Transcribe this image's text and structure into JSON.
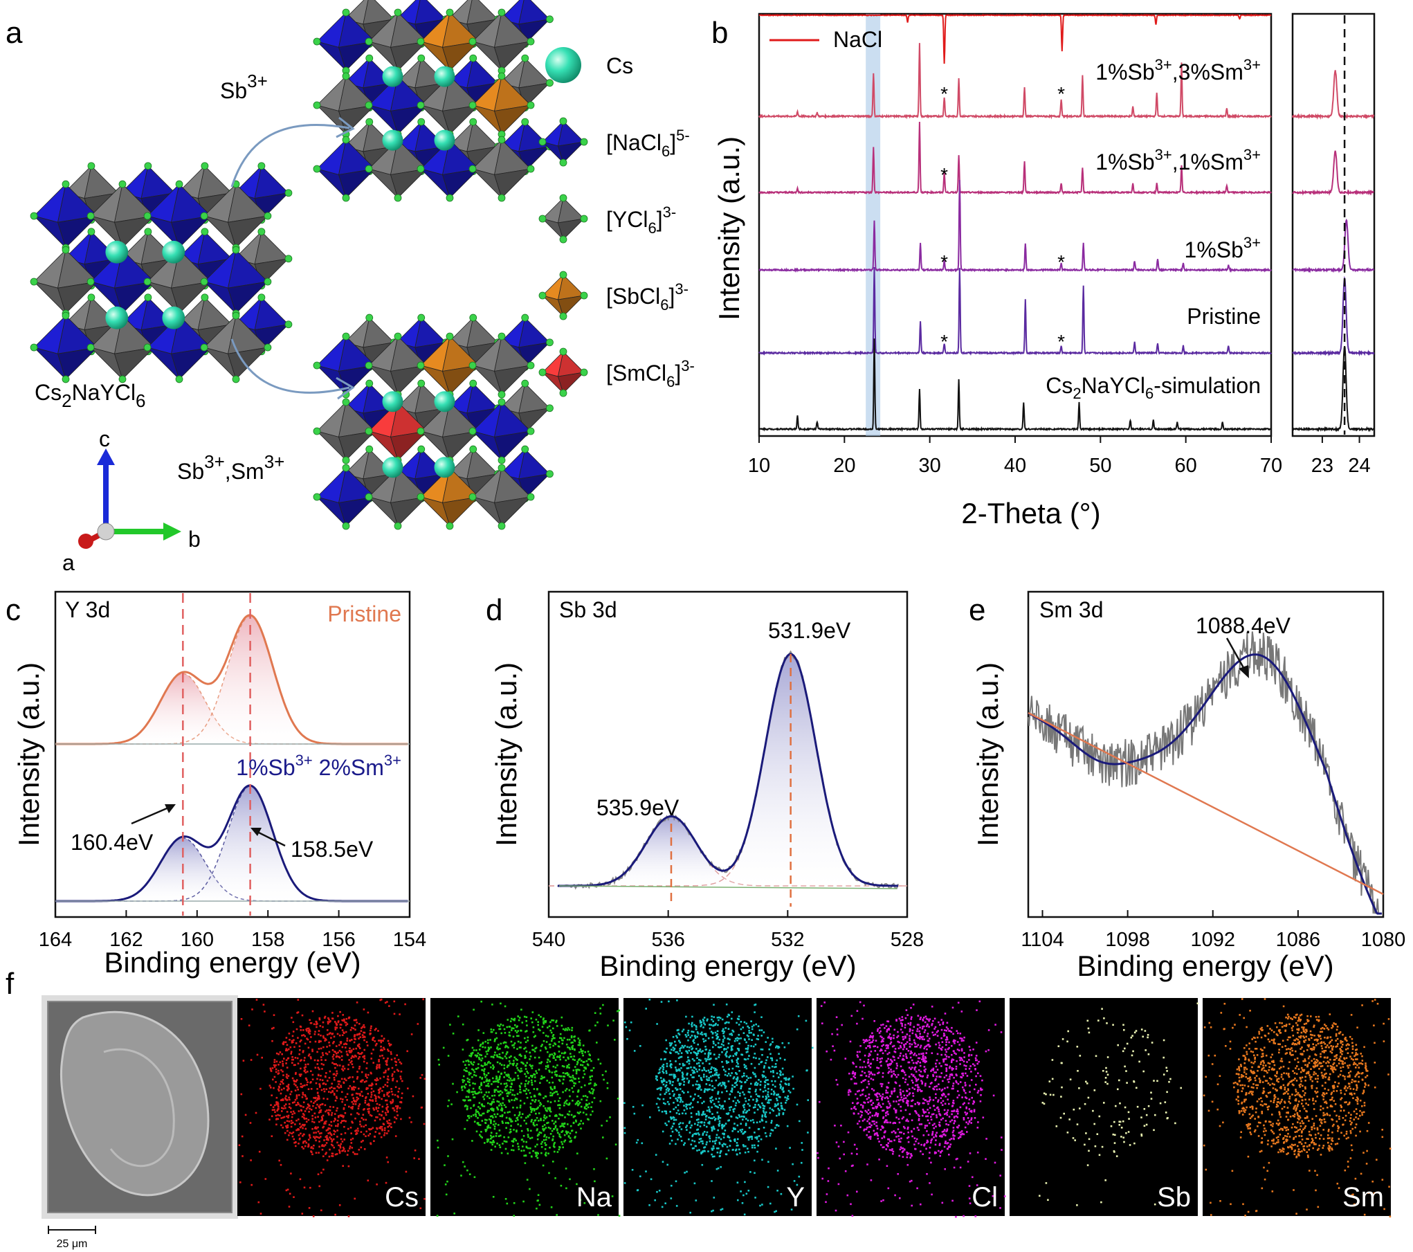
{
  "panels": {
    "a": {
      "letter": "a",
      "arrow_top_label": {
        "base": "Sb",
        "sup": "3+"
      },
      "arrow_bottom_label": {
        "base1": "Sb",
        "sup1": "3+",
        "sep": ",",
        "base2": "Sm",
        "sup2": "3+"
      },
      "host_name": {
        "p1": "Cs",
        "s1": "2",
        "p2": "NaYCl",
        "s2": "6"
      },
      "axes": {
        "c": "c",
        "b": "b",
        "a": "a"
      },
      "legend": [
        {
          "id": "cs",
          "pre": "Cs",
          "sub": "",
          "post": "",
          "sup": "",
          "color": "#32d7a8"
        },
        {
          "id": "nacl6",
          "pre": "[NaCl",
          "sub": "6",
          "post": "]",
          "sup": "5-",
          "color": "#1a1ab8"
        },
        {
          "id": "ycl6",
          "pre": "[YCl",
          "sub": "6",
          "post": "]",
          "sup": "3-",
          "color": "#6e6e6e"
        },
        {
          "id": "sbcl6",
          "pre": "[SbCl",
          "sub": "6",
          "post": "]",
          "sup": "3-",
          "color": "#c8781c"
        },
        {
          "id": "smcl6",
          "pre": "[SmCl",
          "sub": "6",
          "post": "]",
          "sup": "3-",
          "color": "#d83434"
        }
      ]
    },
    "b": {
      "letter": "b",
      "ylabel": "Intensity (a.u.)",
      "xlabel": "2-Theta (°)",
      "nacl_legend": "NaCl",
      "star": "*",
      "trace_labels": [
        {
          "id": "l1",
          "base1": "1%Sb",
          "sup1": "3+",
          "base2": ",3%Sm",
          "sup2": "3+"
        },
        {
          "id": "l2",
          "base1": "1%Sb",
          "sup1": "3+",
          "base2": ",1%Sm",
          "sup2": "3+"
        },
        {
          "id": "l3",
          "base1": "1%Sb",
          "sup1": "3+",
          "base2": "",
          "sup2": ""
        },
        {
          "id": "l4",
          "base1": "Pristine",
          "sup1": "",
          "base2": "",
          "sup2": ""
        },
        {
          "id": "l5",
          "base1": "Cs",
          "sub": "2",
          "base2": "NaYCl",
          "sub2": "6",
          "base3": "-simulation"
        }
      ]
    },
    "c": {
      "letter": "c",
      "title": "Y 3d",
      "pristine": "Pristine",
      "doped": {
        "b1": "1%Sb",
        "s1": "3+",
        "b2": " 2%Sm",
        "s2": "3+"
      },
      "peak1": "160.4eV",
      "peak2": "158.5eV",
      "ylabel": "Intensity (a.u.)",
      "xlabel": "Binding energy (eV)"
    },
    "d": {
      "letter": "d",
      "title": "Sb 3d",
      "peak1": "531.9eV",
      "peak2": "535.9eV",
      "ylabel": "Intensity (a.u.)",
      "xlabel": "Binding energy (eV)"
    },
    "e": {
      "letter": "e",
      "title": "Sm 3d",
      "peak1": "1088.4eV",
      "ylabel": "Intensity (a.u.)",
      "xlabel": "Binding energy (eV)"
    },
    "f": {
      "letter": "f",
      "scale_bar": "25 μm",
      "maps": [
        {
          "element": "Cs",
          "color": "#e01a1a"
        },
        {
          "element": "Na",
          "color": "#22d41a"
        },
        {
          "element": "Y",
          "color": "#18c8c8"
        },
        {
          "element": "Cl",
          "color": "#e01ae0"
        },
        {
          "element": "Sb",
          "color": "#e8f0b0"
        },
        {
          "element": "Sm",
          "color": "#e8781e"
        }
      ]
    }
  },
  "chart_data": [
    {
      "panel": "b",
      "type": "line",
      "xlabel": "2-Theta (°)",
      "ylabel": "Intensity (a.u.)",
      "xlim": [
        10,
        70
      ],
      "xticks": [
        10,
        20,
        30,
        40,
        50,
        60,
        70
      ],
      "highlight_range": [
        22.5,
        24.2
      ],
      "nacl_peaks": [
        27.4,
        31.7,
        45.5,
        56.5,
        66.3
      ],
      "series": [
        {
          "name": "NaCl",
          "color": "#e01a1a",
          "inverted": true,
          "peaks": [
            [
              27.4,
              0.15
            ],
            [
              31.7,
              1.0
            ],
            [
              45.5,
              0.75
            ],
            [
              56.5,
              0.2
            ],
            [
              66.3,
              0.08
            ]
          ]
        },
        {
          "name": "1%Sb3+,3%Sm3+",
          "color": "#d04a66",
          "peaks": [
            [
              14.5,
              0.05
            ],
            [
              16.8,
              0.04
            ],
            [
              23.4,
              0.45
            ],
            [
              28.8,
              0.75
            ],
            [
              31.7,
              0.2
            ],
            [
              33.4,
              0.4
            ],
            [
              41.1,
              0.3
            ],
            [
              45.4,
              0.18
            ],
            [
              47.9,
              0.42
            ],
            [
              53.8,
              0.1
            ],
            [
              56.6,
              0.25
            ],
            [
              59.5,
              0.55
            ],
            [
              64.8,
              0.08
            ]
          ]
        },
        {
          "name": "1%Sb3+,1%Sm3+",
          "color": "#b8307a",
          "peaks": [
            [
              14.5,
              0.05
            ],
            [
              23.4,
              0.5
            ],
            [
              28.8,
              0.78
            ],
            [
              31.7,
              0.22
            ],
            [
              33.4,
              0.42
            ],
            [
              41.1,
              0.35
            ],
            [
              45.4,
              0.1
            ],
            [
              47.9,
              0.28
            ],
            [
              53.8,
              0.1
            ],
            [
              56.6,
              0.1
            ],
            [
              59.5,
              0.3
            ],
            [
              64.8,
              0.08
            ]
          ]
        },
        {
          "name": "1%Sb3+",
          "color": "#8a2aa0",
          "peaks": [
            [
              23.5,
              0.55
            ],
            [
              28.9,
              0.3
            ],
            [
              31.7,
              0.1
            ],
            [
              33.5,
              1.0
            ],
            [
              41.2,
              0.3
            ],
            [
              45.4,
              0.08
            ],
            [
              48.0,
              0.3
            ],
            [
              54.0,
              0.1
            ],
            [
              56.7,
              0.12
            ],
            [
              59.7,
              0.08
            ],
            [
              65.0,
              0.05
            ]
          ]
        },
        {
          "name": "Pristine",
          "color": "#5a2aa0",
          "peaks": [
            [
              23.5,
              0.95
            ],
            [
              28.9,
              0.35
            ],
            [
              31.7,
              0.1
            ],
            [
              33.5,
              0.95
            ],
            [
              41.2,
              0.6
            ],
            [
              45.4,
              0.08
            ],
            [
              48.0,
              0.75
            ],
            [
              54.0,
              0.12
            ],
            [
              56.7,
              0.1
            ],
            [
              59.7,
              0.08
            ],
            [
              65.0,
              0.08
            ]
          ]
        },
        {
          "name": "Cs2NaYCl6-simulation",
          "color": "#111111",
          "peaks": [
            [
              14.5,
              0.15
            ],
            [
              16.8,
              0.08
            ],
            [
              23.5,
              1.0
            ],
            [
              28.8,
              0.45
            ],
            [
              33.4,
              0.55
            ],
            [
              41.0,
              0.3
            ],
            [
              47.5,
              0.3
            ],
            [
              53.5,
              0.1
            ],
            [
              56.2,
              0.1
            ],
            [
              59.0,
              0.08
            ],
            [
              64.3,
              0.08
            ]
          ]
        }
      ]
    },
    {
      "panel": "b-inset",
      "type": "line",
      "xlim": [
        22.2,
        24.4
      ],
      "xticks": [
        23,
        24
      ],
      "reference_line": 23.6,
      "series": [
        {
          "name": "1%Sb3+,3%Sm3+",
          "color": "#d04a66",
          "peak": [
            23.35,
            0.55
          ]
        },
        {
          "name": "1%Sb3+,1%Sm3+",
          "color": "#b8307a",
          "peak": [
            23.35,
            0.5
          ]
        },
        {
          "name": "1%Sb3+",
          "color": "#8a2aa0",
          "peak": [
            23.65,
            0.6
          ]
        },
        {
          "name": "Pristine",
          "color": "#5a2aa0",
          "peak": [
            23.6,
            0.9
          ]
        },
        {
          "name": "Cs2NaYCl6-simulation",
          "color": "#111111",
          "peak": [
            23.6,
            1.0
          ]
        }
      ]
    },
    {
      "panel": "c",
      "type": "line",
      "xlabel": "Binding energy (eV)",
      "ylabel": "Intensity (a.u.)",
      "xlim": [
        164,
        154
      ],
      "xticks": [
        164,
        162,
        160,
        158,
        156,
        154
      ],
      "reference_lines": [
        160.4,
        158.5
      ],
      "series": [
        {
          "name": "Pristine",
          "color": "#e07850",
          "peaks": [
            [
              160.4,
              0.55
            ],
            [
              158.5,
              1.0
            ]
          ]
        },
        {
          "name": "1%Sb3+ 2%Sm3+",
          "color": "#1a1a7a",
          "peaks": [
            [
              160.4,
              0.55
            ],
            [
              158.5,
              1.0
            ]
          ]
        }
      ]
    },
    {
      "panel": "d",
      "type": "line",
      "xlabel": "Binding energy (eV)",
      "ylabel": "Intensity (a.u.)",
      "xlim": [
        540,
        528
      ],
      "xticks": [
        540,
        536,
        532,
        528
      ],
      "reference_lines": [
        535.9,
        531.9
      ],
      "series": [
        {
          "name": "Sb 3d",
          "color": "#1a1a7a",
          "peaks": [
            [
              535.9,
              0.3
            ],
            [
              531.9,
              1.0
            ]
          ]
        }
      ]
    },
    {
      "panel": "e",
      "type": "line",
      "xlabel": "Binding energy (eV)",
      "ylabel": "Intensity (a.u.)",
      "xlim": [
        1105,
        1080
      ],
      "xticks": [
        1104,
        1098,
        1092,
        1086,
        1080
      ],
      "series": [
        {
          "name": "raw",
          "color": "#777777"
        },
        {
          "name": "fit",
          "color": "#1a1a7a",
          "peaks": [
            [
              1088.4,
              0.5
            ]
          ]
        },
        {
          "name": "background",
          "color": "#e07850"
        }
      ]
    }
  ]
}
